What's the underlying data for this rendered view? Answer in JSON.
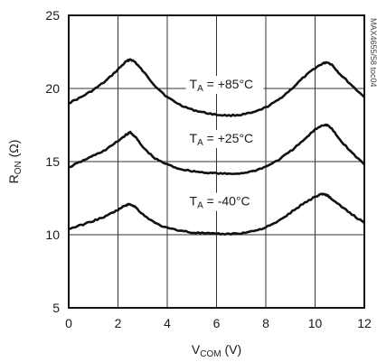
{
  "chart_data": {
    "type": "line",
    "title": "",
    "xlabel": {
      "main": "V",
      "sub": "COM",
      "unit": " (V)"
    },
    "ylabel": {
      "main": "R",
      "sub": "ON",
      "unit": " (Ω)"
    },
    "xlim": [
      0,
      12
    ],
    "ylim": [
      5,
      25
    ],
    "xticks": [
      0,
      2,
      4,
      6,
      8,
      10,
      12
    ],
    "yticks": [
      5,
      10,
      15,
      20,
      25
    ],
    "grid": true,
    "legend": "none",
    "series": [
      {
        "label_main": "T",
        "label_sub": "A",
        "label_rest": " = +85°C",
        "label_anchor": [
          4.9,
          20.0
        ],
        "x": [
          0,
          0.5,
          1.0,
          1.5,
          2.0,
          2.3,
          2.5,
          2.7,
          3.0,
          3.5,
          4.0,
          4.5,
          5.0,
          5.5,
          6.0,
          6.5,
          7.0,
          7.5,
          8.0,
          8.5,
          9.0,
          9.5,
          10.0,
          10.3,
          10.5,
          10.7,
          11.0,
          11.5,
          12.0
        ],
        "values": [
          19.0,
          19.4,
          19.9,
          20.5,
          21.3,
          21.8,
          22.0,
          21.8,
          21.2,
          20.2,
          19.4,
          18.9,
          18.55,
          18.35,
          18.2,
          18.15,
          18.2,
          18.35,
          18.7,
          19.2,
          19.9,
          20.7,
          21.4,
          21.7,
          21.8,
          21.6,
          21.0,
          20.2,
          19.4
        ]
      },
      {
        "label_main": "T",
        "label_sub": "A",
        "label_rest": " = +25°C",
        "label_anchor": [
          4.9,
          16.3
        ],
        "x": [
          0,
          0.5,
          1.0,
          1.5,
          2.0,
          2.3,
          2.5,
          2.7,
          3.0,
          3.5,
          4.0,
          4.5,
          5.0,
          5.5,
          6.0,
          6.5,
          7.0,
          7.5,
          8.0,
          8.5,
          9.0,
          9.5,
          10.0,
          10.3,
          10.5,
          10.7,
          11.0,
          11.5,
          12.0
        ],
        "values": [
          14.6,
          15.0,
          15.4,
          15.8,
          16.4,
          16.8,
          17.0,
          16.7,
          16.0,
          15.2,
          14.8,
          14.5,
          14.35,
          14.25,
          14.2,
          14.15,
          14.2,
          14.35,
          14.65,
          15.1,
          15.7,
          16.4,
          17.2,
          17.5,
          17.5,
          17.2,
          16.5,
          15.6,
          14.8
        ]
      },
      {
        "label_main": "T",
        "label_sub": "A",
        "label_rest": " = -40°C",
        "label_anchor": [
          4.9,
          12.0
        ],
        "x": [
          0,
          0.5,
          1.0,
          1.5,
          2.0,
          2.3,
          2.5,
          2.7,
          3.0,
          3.5,
          4.0,
          4.5,
          5.0,
          5.5,
          6.0,
          6.5,
          7.0,
          7.5,
          8.0,
          8.5,
          9.0,
          9.5,
          10.0,
          10.3,
          10.5,
          10.7,
          11.0,
          11.5,
          12.0
        ],
        "values": [
          10.4,
          10.65,
          10.95,
          11.25,
          11.7,
          12.0,
          12.1,
          11.9,
          11.4,
          10.8,
          10.45,
          10.3,
          10.15,
          10.1,
          10.05,
          10.05,
          10.1,
          10.25,
          10.5,
          10.9,
          11.5,
          12.1,
          12.6,
          12.8,
          12.7,
          12.4,
          12.0,
          11.4,
          10.8
        ]
      }
    ],
    "watermark": "MAX4655/58 toc04"
  }
}
